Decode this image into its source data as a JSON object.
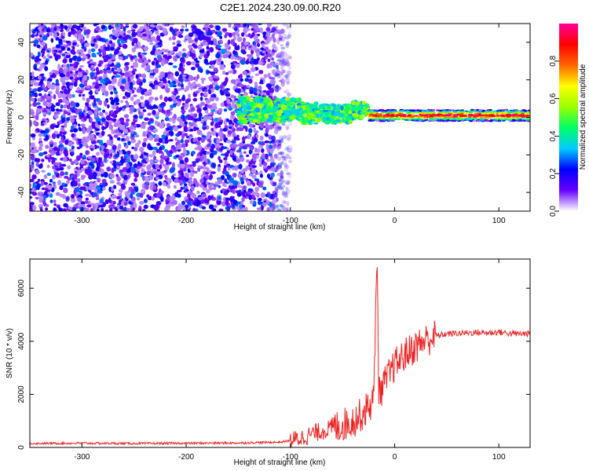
{
  "figure": {
    "title": "C2E1.2024.230.09.00.R20"
  },
  "chart_data": [
    {
      "type": "heatmap",
      "xlabel": "Height of straight line (km)",
      "ylabel": "Frequency (Hz)",
      "xlim": [
        -350,
        130
      ],
      "ylim": [
        -50,
        50
      ],
      "xticks": [
        -300,
        -200,
        -100,
        0,
        100
      ],
      "yticks": [
        -40,
        -20,
        0,
        20,
        40
      ],
      "colorbar": {
        "label": "Normalized spectral amplitude",
        "range": [
          0,
          1
        ],
        "ticks": [
          0.0,
          0.2,
          0.4,
          0.6,
          0.8
        ],
        "tick_labels": [
          "0.0",
          "0.2",
          "0.4",
          "0.6",
          "0.8"
        ],
        "colormap": [
          "#ffffff",
          "#6600ff",
          "#0000ff",
          "#00ccff",
          "#00ff66",
          "#99ff00",
          "#ffff00",
          "#ff6600",
          "#ff0000",
          "#ff0099"
        ]
      },
      "regions": [
        {
          "x": [
            -350,
            -100
          ],
          "y": [
            -50,
            50
          ],
          "description_amplitude": [
            0.05,
            0.3
          ]
        },
        {
          "x": [
            -150,
            -25
          ],
          "y_center": 4,
          "amplitude": [
            0.3,
            0.6
          ]
        },
        {
          "x": [
            -25,
            130
          ],
          "y_center": 1,
          "amplitude": [
            0.6,
            1.0
          ]
        }
      ],
      "grid": false,
      "legend": "none"
    },
    {
      "type": "line",
      "xlabel": "Height of straight line (km)",
      "ylabel": "SNR (10 * v/v)",
      "xlim": [
        -350,
        130
      ],
      "ylim": [
        0,
        7100
      ],
      "xticks": [
        -300,
        -200,
        -100,
        0,
        100
      ],
      "yticks": [
        0,
        2000,
        4000,
        6000
      ],
      "series": [
        {
          "color": "#ee2222",
          "x": [
            -350,
            -300,
            -250,
            -200,
            -150,
            -110,
            -100,
            -90,
            -80,
            -70,
            -60,
            -50,
            -40,
            -30,
            -20,
            -17,
            -15,
            -10,
            0,
            10,
            20,
            30,
            40,
            50,
            60,
            70,
            80,
            90,
            100,
            110,
            120,
            130
          ],
          "y": [
            150,
            160,
            150,
            160,
            170,
            200,
            260,
            350,
            500,
            620,
            720,
            850,
            1000,
            1300,
            1800,
            7100,
            2000,
            2400,
            3100,
            3500,
            3800,
            4050,
            4200,
            4280,
            4300,
            4320,
            4330,
            4320,
            4350,
            4300,
            4280,
            4300
          ]
        }
      ],
      "grid": false,
      "legend": "none"
    }
  ]
}
